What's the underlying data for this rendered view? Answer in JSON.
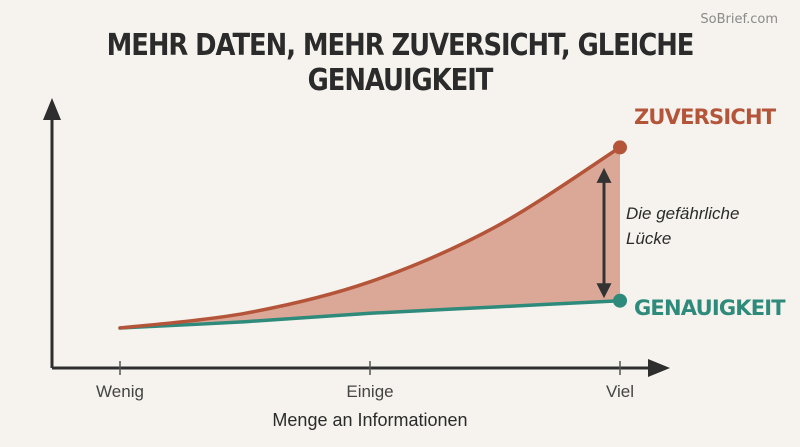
{
  "watermark": "SoBrief.com",
  "chart_data": {
    "type": "area",
    "title": "MEHR DATEN, MEHR ZUVERSICHT, GLEICHE GENAUIGKEIT",
    "xlabel": "Menge an Informationen",
    "ylabel": "",
    "categories": [
      "Wenig",
      "Einige",
      "Viel"
    ],
    "x": [
      0,
      0.25,
      0.5,
      0.75,
      1
    ],
    "series": [
      {
        "name": "ZUVERSICHT",
        "color": "#b4553a",
        "values": [
          0,
          0.07,
          0.22,
          0.48,
          0.86
        ]
      },
      {
        "name": "GENAUIGKEIT",
        "color": "#2e8a7a",
        "values": [
          0,
          0.03,
          0.07,
          0.1,
          0.13
        ]
      }
    ],
    "fill_color": "#dba898",
    "annotation": {
      "text_line1": "Die gefährliche",
      "text_line2": "Lücke"
    },
    "ylim": [
      0,
      1
    ],
    "grid": false
  }
}
